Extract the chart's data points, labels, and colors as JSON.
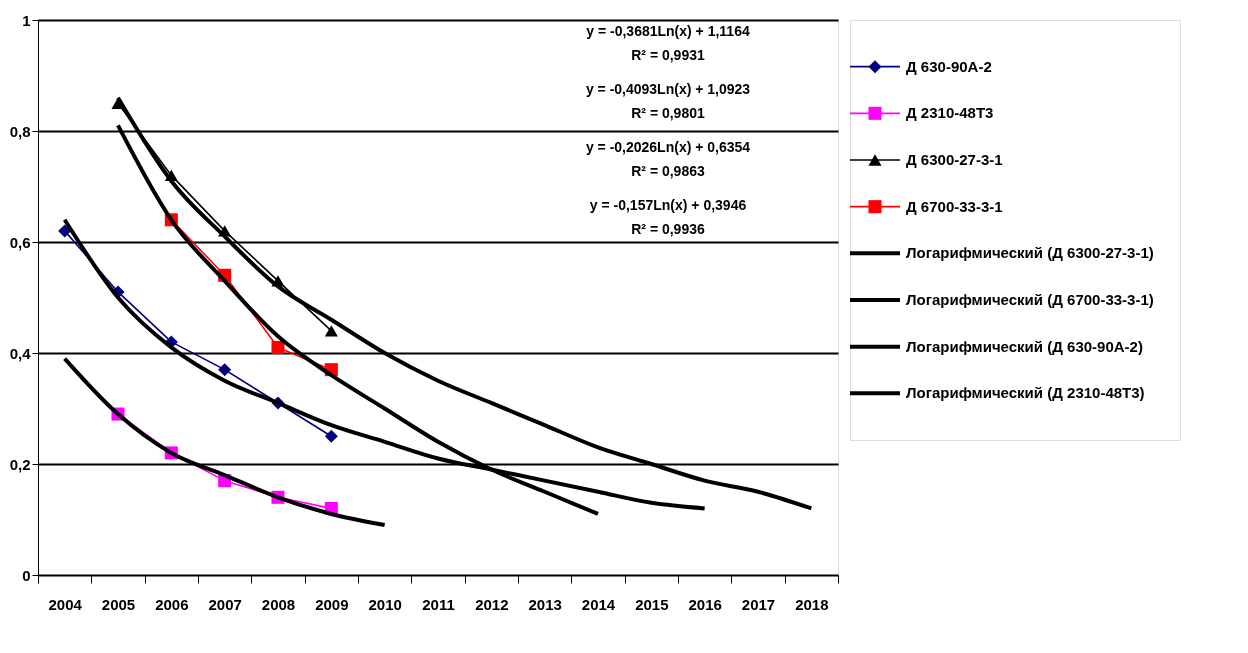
{
  "chart_data": {
    "type": "line",
    "categories": [
      "2004",
      "2005",
      "2006",
      "2007",
      "2008",
      "2009",
      "2010",
      "2011",
      "2012",
      "2013",
      "2014",
      "2015",
      "2016",
      "2017",
      "2018"
    ],
    "series": [
      {
        "name": "Д 630-90А-2",
        "color": "#000080",
        "marker": "diamond",
        "values": [
          0.62,
          0.51,
          0.42,
          0.37,
          0.31,
          0.25,
          null,
          null,
          null,
          null,
          null,
          null,
          null,
          null,
          null
        ]
      },
      {
        "name": "Д 2310-48Т3",
        "color": "#ff00ff",
        "marker": "square",
        "values": [
          null,
          0.29,
          0.22,
          0.17,
          0.14,
          0.12,
          null,
          null,
          null,
          null,
          null,
          null,
          null,
          null,
          null
        ]
      },
      {
        "name": "Д 6300-27-3-1",
        "color": "#000000",
        "marker": "triangle",
        "values": [
          null,
          0.85,
          0.72,
          0.62,
          0.53,
          0.44,
          null,
          null,
          null,
          null,
          null,
          null,
          null,
          null,
          null
        ]
      },
      {
        "name": "Д 6700-33-3-1",
        "color": "#ff0000",
        "marker": "square",
        "values": [
          null,
          null,
          0.64,
          0.54,
          0.41,
          0.37,
          null,
          null,
          null,
          null,
          null,
          null,
          null,
          null,
          null
        ]
      },
      {
        "name": "Логарифмический (Д 6300-27-3-1)",
        "color": "#000000",
        "marker": "none",
        "values": [
          null,
          0.86,
          0.71,
          0.61,
          0.52,
          0.46,
          0.4,
          0.35,
          0.31,
          0.27,
          0.23,
          0.2,
          0.17,
          0.15,
          0.12
        ]
      },
      {
        "name": "Логарифмический (Д 6700-33-3-1)",
        "color": "#000000",
        "marker": "none",
        "values": [
          null,
          0.81,
          0.64,
          0.53,
          0.43,
          0.36,
          0.3,
          0.24,
          0.19,
          0.15,
          0.11,
          null,
          null,
          null,
          null
        ]
      },
      {
        "name": "Логарифмический (Д 630-90А-2)",
        "color": "#000000",
        "marker": "none",
        "values": [
          0.64,
          0.5,
          0.41,
          0.35,
          0.31,
          0.27,
          0.24,
          0.21,
          0.19,
          0.17,
          0.15,
          0.13,
          0.12,
          null,
          null
        ]
      },
      {
        "name": "Логарифмический (Д 2310-48Т3)",
        "color": "#000000",
        "marker": "none",
        "values": [
          0.39,
          0.29,
          0.22,
          0.18,
          0.14,
          0.11,
          0.09,
          null,
          null,
          null,
          null,
          null,
          null,
          null,
          null
        ]
      }
    ],
    "ylim": [
      0,
      1
    ],
    "yticks": [
      0,
      {
        "value": 0.2,
        "label": "0,2"
      },
      {
        "value": 0.4,
        "label": "0,4"
      },
      {
        "value": 0.6,
        "label": "0,6"
      },
      {
        "value": 0.8,
        "label": "0,8"
      },
      1
    ],
    "grid": "y",
    "legend": "right",
    "line_style": "solid",
    "annotations": [
      "y = -0,3681Ln(x) + 1,1164",
      "R² = 0,9931",
      "y = -0,4093Ln(x) + 1,0923",
      "R² = 0,9801",
      "y = -0,2026Ln(x) + 0,6354",
      "R² = 0,9863",
      "y = -0,157Ln(x) + 0,3946",
      "R² = 0,9936"
    ]
  }
}
